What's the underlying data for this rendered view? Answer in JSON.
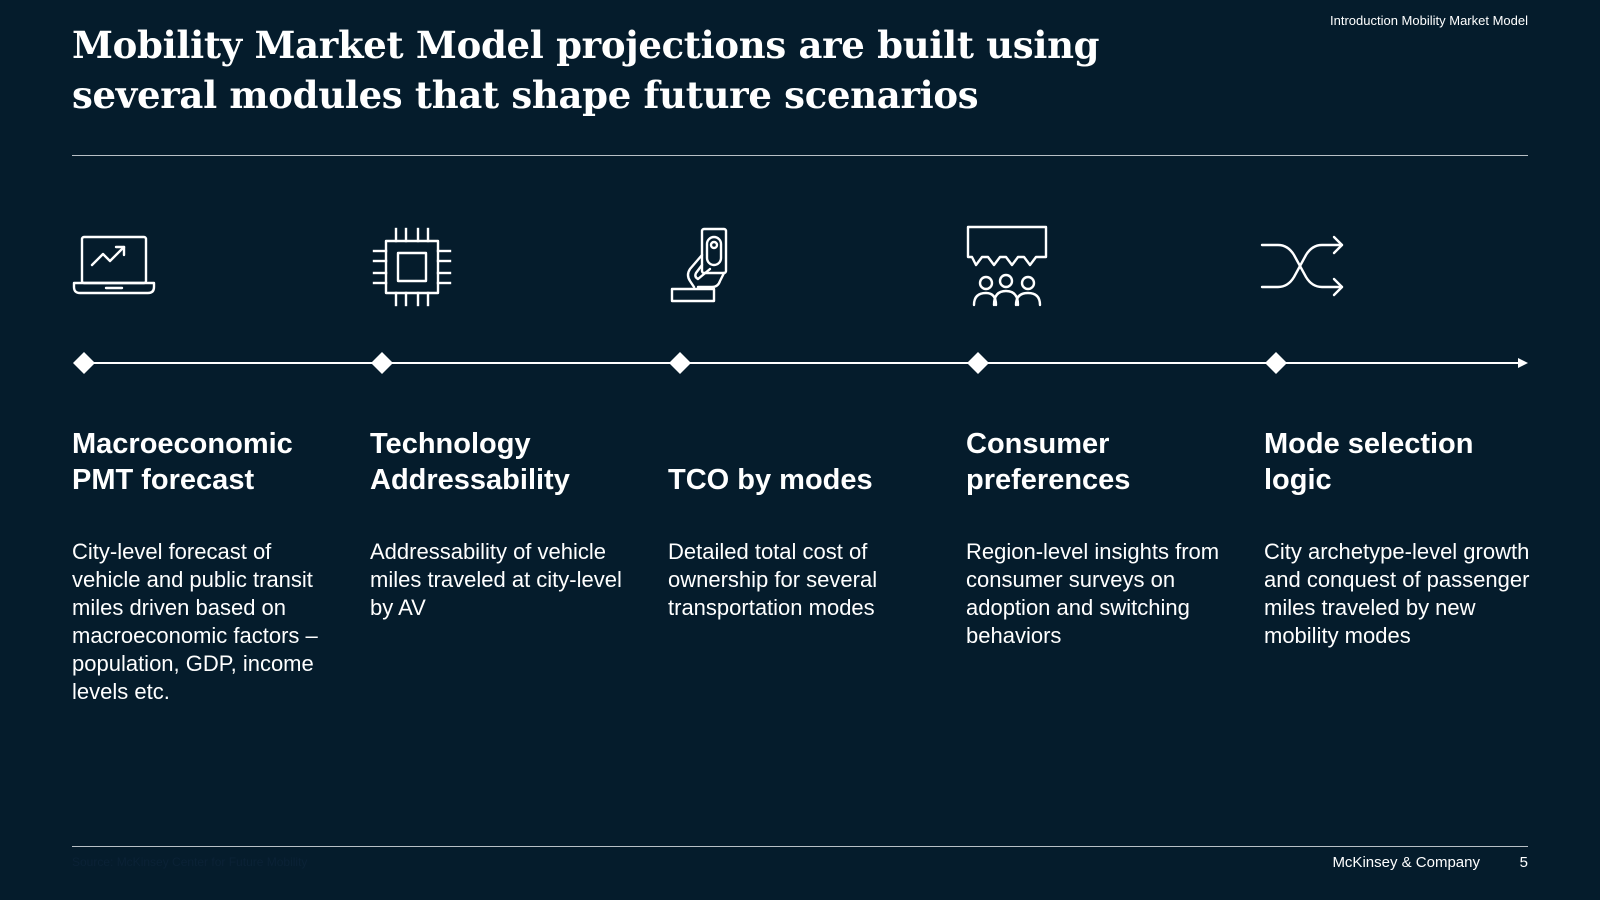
{
  "header": {
    "breadcrumb": "Introduction Mobility Market Model",
    "title": "Mobility Market Model projections are built using several modules that shape future scenarios"
  },
  "steps": [
    {
      "icon": "laptop-chart-icon",
      "heading": "Macroeconomic PMT forecast",
      "description": "City-level forecast of vehicle and public transit miles driven based on macroeconomic factors – population, GDP, income levels etc."
    },
    {
      "icon": "microchip-icon",
      "heading": "Technology Addressability",
      "description": "Addressability of vehicle miles traveled at city-level by AV"
    },
    {
      "icon": "hand-cash-icon",
      "heading": "TCO by modes",
      "description": "Detailed total cost of ownership for several transportation modes"
    },
    {
      "icon": "people-speech-icon",
      "heading": "Consumer preferences",
      "description": "Region-level insights from consumer surveys on adoption and switching behaviors"
    },
    {
      "icon": "shuffle-arrows-icon",
      "heading": "Mode selection logic",
      "description": "City archetype-level growth and conquest of passenger miles traveled by new mobility modes"
    }
  ],
  "footer": {
    "source": "Source: McKinsey Center for Future Mobility",
    "brand": "McKinsey & Company",
    "page_number": "5"
  },
  "colors": {
    "background": "#051c2c",
    "text": "#ffffff",
    "rule": "#b8c0c6"
  }
}
